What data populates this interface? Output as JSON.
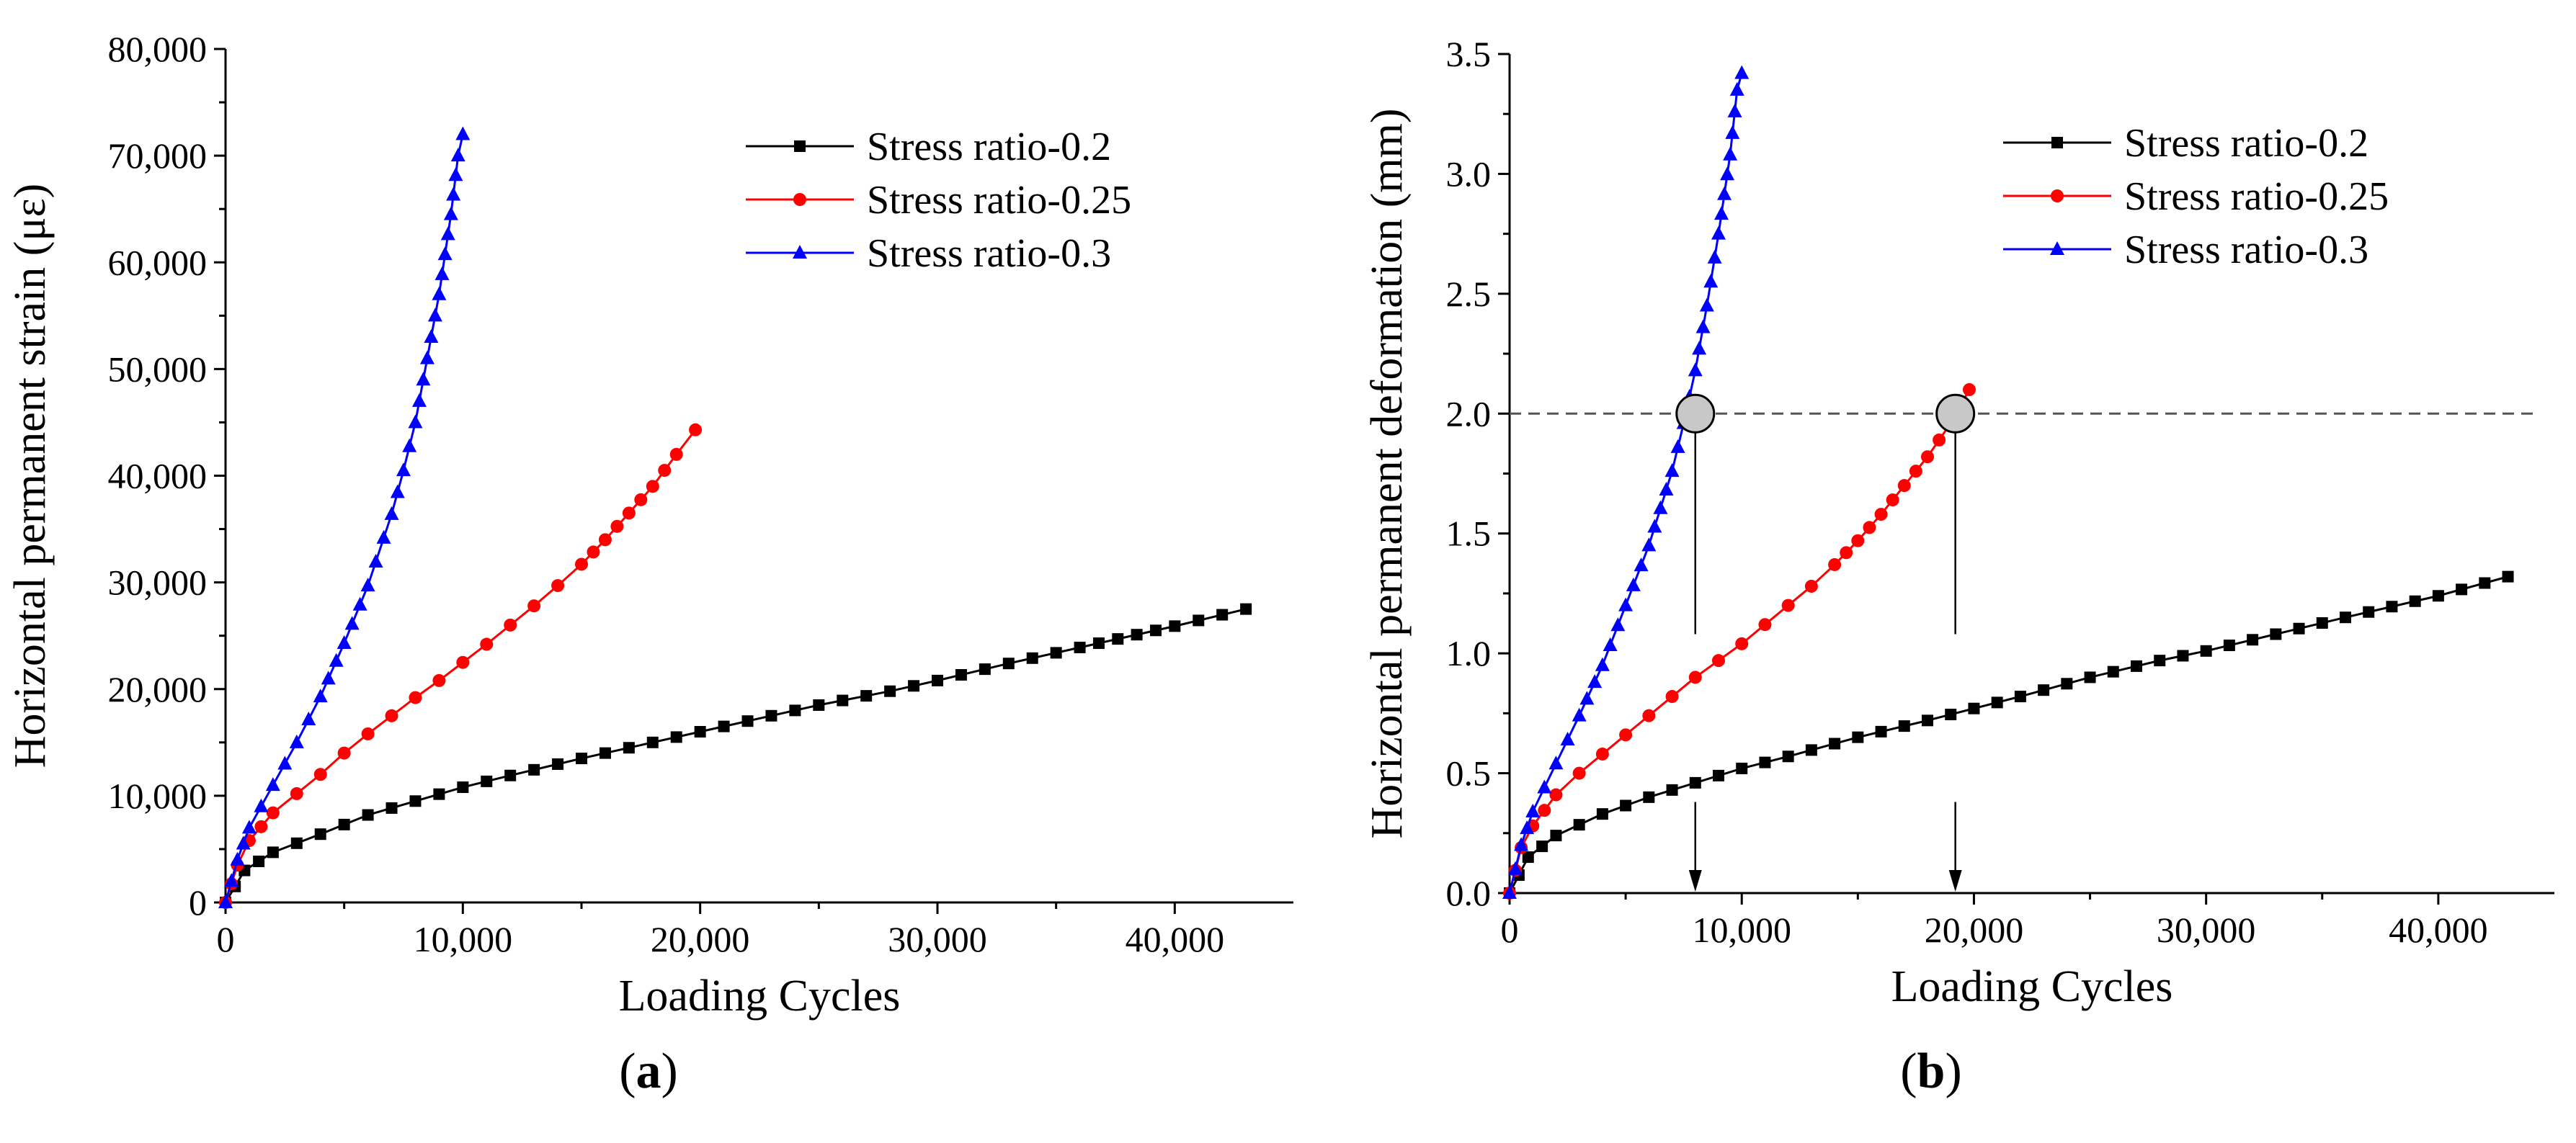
{
  "colors": {
    "s02": "#000000",
    "s025": "#ff0000",
    "s03": "#0000ff",
    "axis": "#000000",
    "dash": "#555555",
    "marker_fill": "#c8c8c8"
  },
  "chart_data": [
    {
      "type": "line",
      "panel_label": "a",
      "xlabel": "Loading Cycles",
      "ylabel": "Horizontal permanent strain (με)",
      "xlim": [
        0,
        45000
      ],
      "ylim": [
        0,
        80000
      ],
      "xticks": [
        0,
        10000,
        20000,
        30000,
        40000
      ],
      "yticks": [
        0,
        10000,
        20000,
        30000,
        40000,
        50000,
        60000,
        70000,
        80000
      ],
      "xtick_labels": [
        "0",
        "10,000",
        "20,000",
        "30,000",
        "40,000"
      ],
      "ytick_labels": [
        "0",
        "10,000",
        "20,000",
        "30,000",
        "40,000",
        "50,000",
        "60,000",
        "70,000",
        "80,000"
      ],
      "legend_position": "top-right",
      "series": [
        {
          "name": "Stress ratio-0.2",
          "marker": "square",
          "x": [
            0,
            800,
            2000,
            4000,
            6000,
            8000,
            10000,
            12000,
            15000,
            18000,
            20000,
            22000,
            25000,
            28000,
            30000,
            33000,
            36000,
            40000,
            43000
          ],
          "y": [
            0,
            3000,
            4700,
            6400,
            8200,
            9500,
            10800,
            11900,
            13500,
            15000,
            16000,
            17000,
            18500,
            19800,
            20800,
            22400,
            23900,
            25900,
            27500
          ]
        },
        {
          "name": "Stress ratio-0.25",
          "marker": "circle",
          "x": [
            0,
            500,
            1000,
            2000,
            3000,
            4000,
            5000,
            6000,
            7000,
            8000,
            9000,
            10000,
            11000,
            12000,
            13000,
            14000,
            15000,
            16000,
            17000,
            18000,
            19000,
            19800
          ],
          "y": [
            0,
            3500,
            5800,
            8400,
            10200,
            12000,
            14000,
            15800,
            17500,
            19200,
            20800,
            22500,
            24200,
            26000,
            27800,
            29700,
            31700,
            34000,
            36500,
            39000,
            42000,
            44300
          ]
        },
        {
          "name": "Stress ratio-0.3",
          "marker": "triangle",
          "x": [
            0,
            500,
            1000,
            2000,
            3000,
            4000,
            5000,
            6000,
            7000,
            7500,
            8000,
            8500,
            9000,
            9500,
            9800,
            10000
          ],
          "y": [
            0,
            4000,
            7000,
            11000,
            15000,
            19300,
            24300,
            29700,
            36400,
            40500,
            45000,
            51000,
            57000,
            64500,
            70000,
            72000
          ]
        }
      ]
    },
    {
      "type": "line",
      "panel_label": "b",
      "xlabel": "Loading Cycles",
      "ylabel": "Horizontal permanent deformation (mm)",
      "xlim": [
        0,
        45000
      ],
      "ylim": [
        0,
        3.5
      ],
      "xticks": [
        0,
        10000,
        20000,
        30000,
        40000
      ],
      "yticks": [
        0,
        0.5,
        1.0,
        1.5,
        2.0,
        2.5,
        3.0,
        3.5
      ],
      "xtick_labels": [
        "0",
        "10,000",
        "20,000",
        "30,000",
        "40,000"
      ],
      "ytick_labels": [
        "0.0",
        "0.5",
        "1.0",
        "1.5",
        "2.0",
        "2.5",
        "3.0",
        "3.5"
      ],
      "legend_position": "top-right",
      "threshold_y": 2.0,
      "threshold_crossings_x": [
        8000,
        19200
      ],
      "series": [
        {
          "name": "Stress ratio-0.2",
          "marker": "square",
          "x": [
            0,
            800,
            2000,
            4000,
            6000,
            8000,
            10000,
            12000,
            15000,
            18000,
            20000,
            22000,
            25000,
            28000,
            30000,
            33000,
            36000,
            40000,
            43000
          ],
          "y": [
            0,
            0.15,
            0.24,
            0.33,
            0.4,
            0.46,
            0.52,
            0.57,
            0.65,
            0.72,
            0.77,
            0.82,
            0.9,
            0.97,
            1.01,
            1.08,
            1.15,
            1.24,
            1.32
          ]
        },
        {
          "name": "Stress ratio-0.25",
          "marker": "circle",
          "x": [
            0,
            500,
            1000,
            2000,
            3000,
            4000,
            5000,
            6000,
            7000,
            8000,
            9000,
            10000,
            11000,
            12000,
            13000,
            14000,
            15000,
            16000,
            17000,
            18000,
            19000,
            19800
          ],
          "y": [
            0,
            0.19,
            0.28,
            0.41,
            0.5,
            0.58,
            0.66,
            0.74,
            0.82,
            0.9,
            0.97,
            1.04,
            1.12,
            1.2,
            1.28,
            1.37,
            1.47,
            1.58,
            1.7,
            1.82,
            1.96,
            2.1
          ]
        },
        {
          "name": "Stress ratio-0.3",
          "marker": "triangle",
          "x": [
            0,
            500,
            1000,
            2000,
            3000,
            4000,
            5000,
            6000,
            7000,
            7500,
            8000,
            8500,
            9000,
            9500,
            9800,
            10000
          ],
          "y": [
            0,
            0.2,
            0.34,
            0.54,
            0.74,
            0.95,
            1.2,
            1.45,
            1.76,
            1.96,
            2.18,
            2.45,
            2.75,
            3.08,
            3.35,
            3.42
          ]
        }
      ]
    }
  ]
}
